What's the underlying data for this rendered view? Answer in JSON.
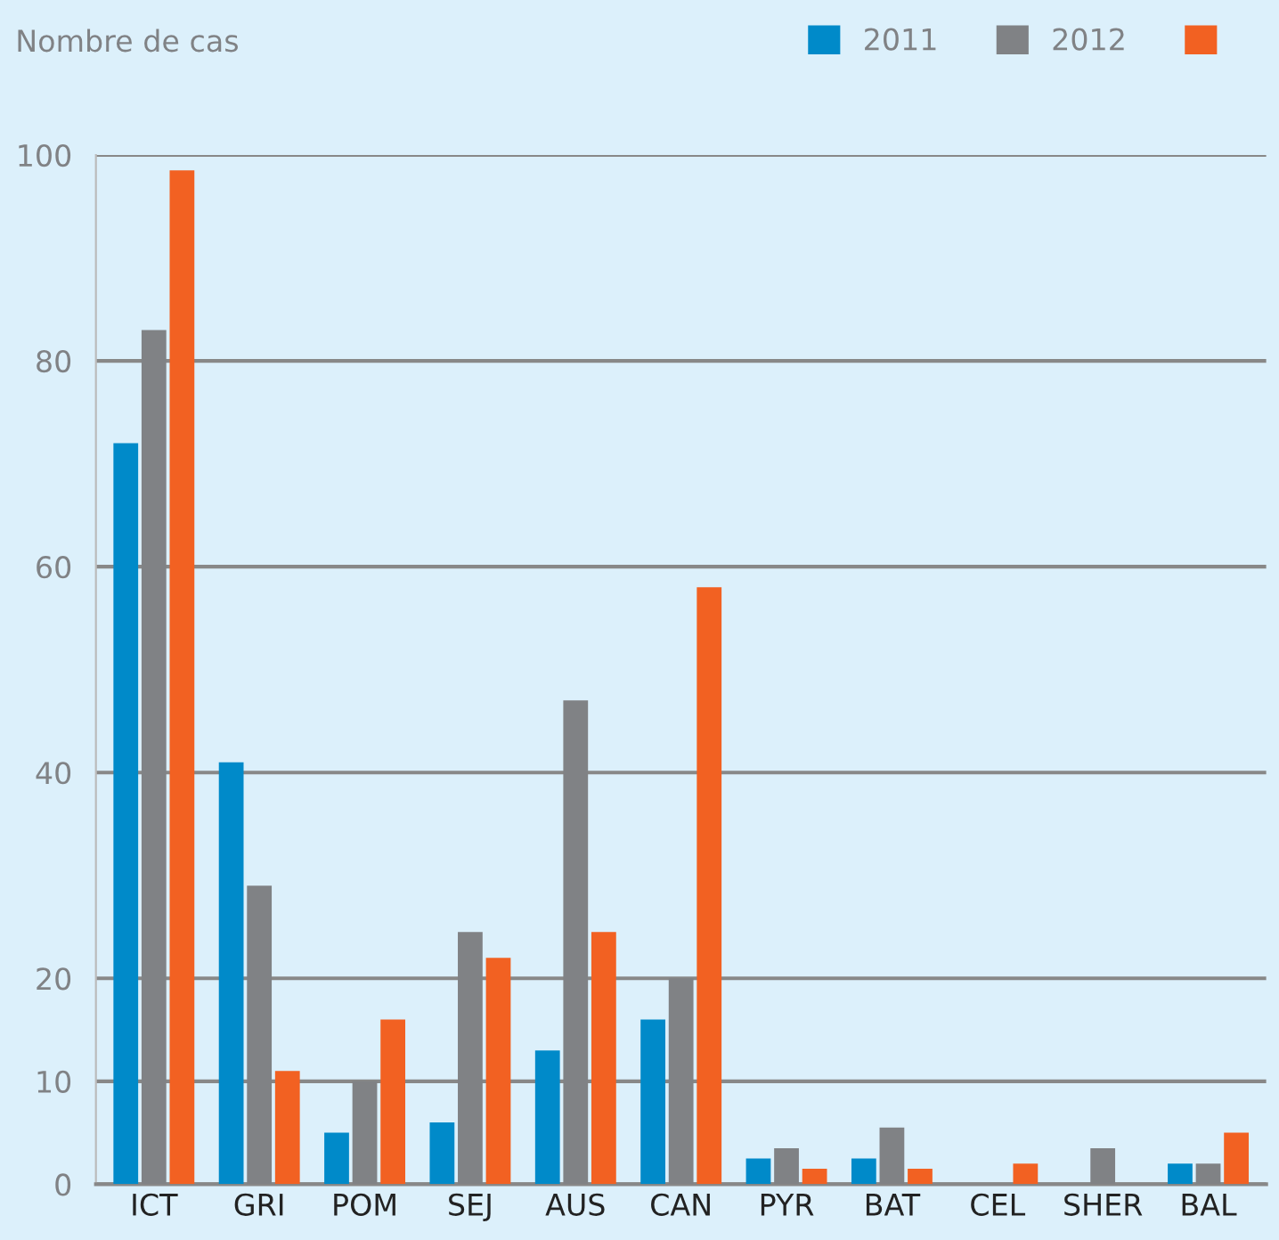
{
  "chart_data": {
    "type": "bar",
    "ylabel": "Nombre de cas",
    "categories": [
      "ICT",
      "GRI",
      "POM",
      "SEJ",
      "AUS",
      "CAN",
      "PYR",
      "BAT",
      "CEL",
      "SHER",
      "BAL"
    ],
    "series": [
      {
        "name": "2011",
        "color": "#008ac9",
        "values": [
          72,
          41,
          5,
          6,
          13,
          16,
          2.5,
          2.5,
          0,
          0,
          2
        ]
      },
      {
        "name": "2012",
        "color": "#808285",
        "values": [
          83,
          29,
          10,
          24.5,
          47,
          20,
          3.5,
          5.5,
          0,
          3.5,
          2
        ]
      },
      {
        "color": "#f26122",
        "values": [
          98.5,
          11,
          16,
          22,
          24.5,
          58,
          1.5,
          1.5,
          2,
          0,
          5
        ]
      }
    ],
    "ylim": [
      0,
      100
    ],
    "yticks": [
      0,
      10,
      20,
      40,
      60,
      80,
      100
    ],
    "grid": "y",
    "legend": "top right"
  }
}
